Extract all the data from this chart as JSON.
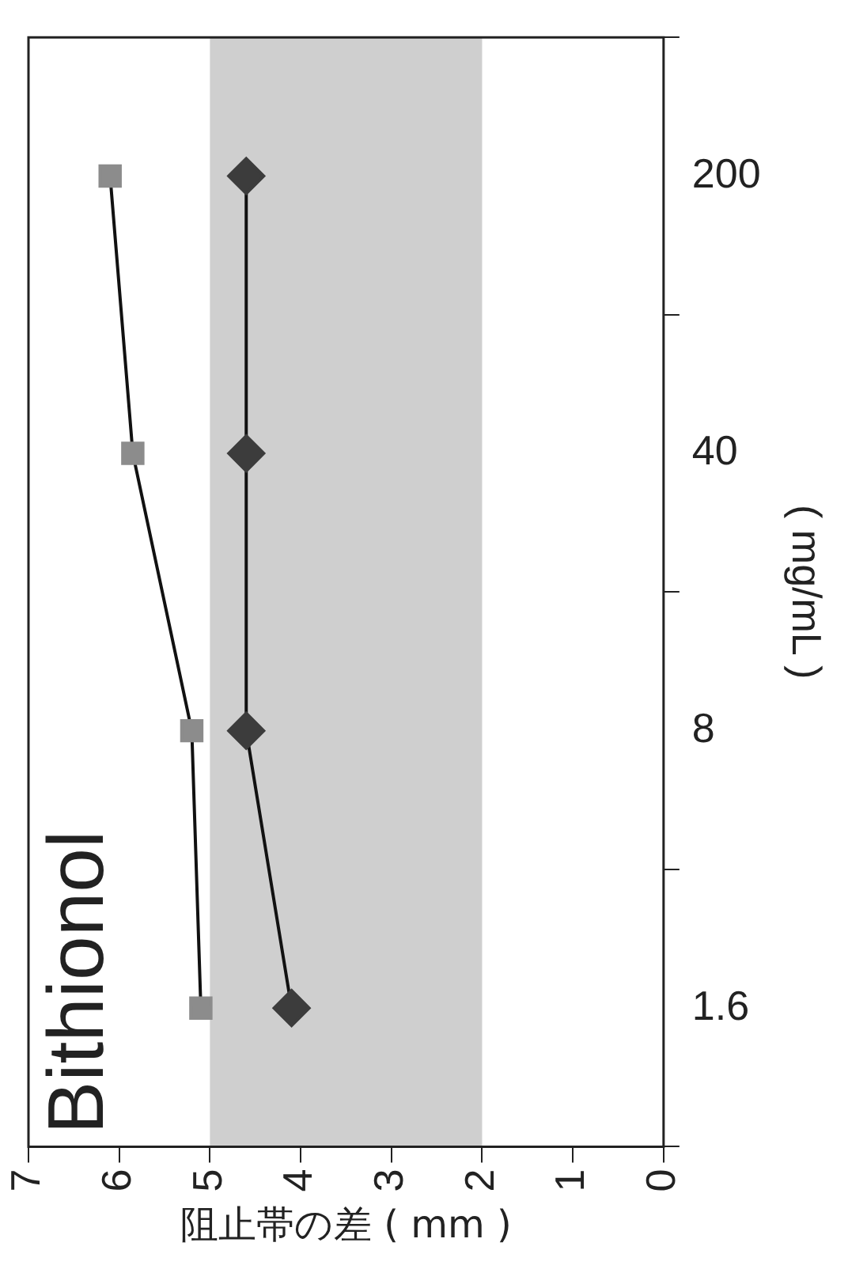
{
  "chart_data": {
    "type": "line",
    "orientation": "horizontal",
    "title": "Bithionol",
    "xlabel": "阻止帯の差 ( mm )",
    "ylabel": "( mg/mL )",
    "categories": [
      "200",
      "40",
      "8",
      "1.6"
    ],
    "series": [
      {
        "color": "#8c8c8c",
        "marker": "square",
        "values": [
          6.1,
          5.85,
          5.2,
          5.1
        ]
      },
      {
        "color": "#3c3c3c",
        "marker": "diamond",
        "values": [
          4.6,
          4.6,
          4.6,
          4.1
        ]
      }
    ],
    "xlim": [
      7,
      0
    ],
    "xticks": [
      7,
      6,
      5,
      4,
      3,
      2,
      1,
      0
    ],
    "bands": [
      {
        "axis": "x",
        "from": 2,
        "to": 5,
        "color": "#cfcfcf"
      }
    ],
    "grid": false,
    "legend": false,
    "line_style": "solid"
  }
}
